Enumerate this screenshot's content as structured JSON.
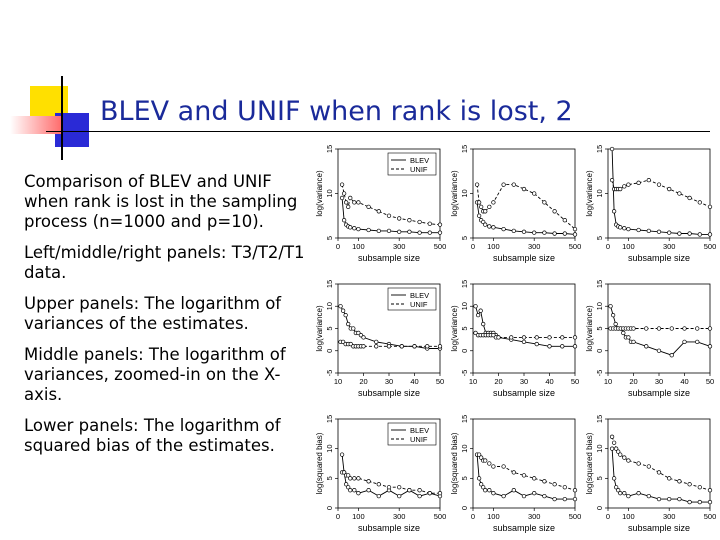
{
  "slide": {
    "title": "BLEV and UNIF when rank is lost, 2",
    "paragraphs": [
      "Comparison of BLEV and UNIF when rank is lost in the sampling process (n=1000 and p=10).",
      "Left/middle/right panels: T3/T2/T1 data.",
      "Upper panels: The logarithm of variances of the estimates.",
      "Middle panels: The logarithm of variances, zoomed-in on the X-axis.",
      "Lower panels: The logarithm of squared bias of the estimates."
    ],
    "colors": {
      "title": "#1a2a9a",
      "deco_yellow": "#ffe000",
      "deco_blue": "#2a2ad6",
      "deco_red": "#ff6a6a"
    }
  },
  "chart_data": [
    {
      "type": "line",
      "row": "upper",
      "col": "left",
      "xlabel": "subsample size",
      "ylabel": "log(variance)",
      "xlim": [
        0,
        500
      ],
      "ylim": [
        5,
        15
      ],
      "xticks": [
        0,
        100,
        300,
        500
      ],
      "yticks": [
        5,
        10,
        15
      ],
      "legend": [
        "BLEV",
        "UNIF"
      ],
      "series": [
        {
          "name": "BLEV",
          "x": [
            20,
            30,
            40,
            50,
            60,
            80,
            100,
            150,
            200,
            250,
            300,
            350,
            400,
            450,
            500
          ],
          "y": [
            9.5,
            7,
            6.5,
            6.3,
            6.2,
            6.1,
            6,
            5.9,
            5.8,
            5.8,
            5.7,
            5.7,
            5.6,
            5.6,
            5.6
          ]
        },
        {
          "name": "UNIF",
          "x": [
            20,
            30,
            40,
            50,
            60,
            80,
            100,
            150,
            200,
            250,
            300,
            350,
            400,
            450,
            500
          ],
          "y": [
            11,
            10,
            9,
            8.5,
            9.5,
            9,
            9,
            8.5,
            8,
            7.5,
            7.2,
            7,
            6.8,
            6.6,
            6.5
          ]
        }
      ]
    },
    {
      "type": "line",
      "row": "upper",
      "col": "middle",
      "xlabel": "subsample size",
      "ylabel": "log(variance)",
      "xlim": [
        0,
        500
      ],
      "ylim": [
        5,
        15
      ],
      "xticks": [
        0,
        100,
        300,
        500
      ],
      "yticks": [
        5,
        10,
        15
      ],
      "series": [
        {
          "name": "BLEV",
          "x": [
            20,
            30,
            40,
            50,
            60,
            80,
            100,
            150,
            200,
            250,
            300,
            350,
            400,
            450,
            500
          ],
          "y": [
            9,
            7.5,
            7,
            6.8,
            6.5,
            6.3,
            6.2,
            6,
            5.8,
            5.7,
            5.6,
            5.6,
            5.5,
            5.5,
            5.4
          ]
        },
        {
          "name": "UNIF",
          "x": [
            20,
            30,
            40,
            50,
            60,
            80,
            100,
            150,
            200,
            250,
            300,
            350,
            400,
            450,
            500
          ],
          "y": [
            11,
            9,
            8.5,
            8,
            8,
            8.5,
            9,
            11,
            11,
            10.5,
            10,
            9,
            8,
            7,
            6
          ]
        }
      ]
    },
    {
      "type": "line",
      "row": "upper",
      "col": "right",
      "xlabel": "subsample size",
      "ylabel": "log(variance)",
      "xlim": [
        0,
        500
      ],
      "ylim": [
        5,
        15
      ],
      "xticks": [
        0,
        100,
        300,
        500
      ],
      "yticks": [
        5,
        10,
        15
      ],
      "series": [
        {
          "name": "BLEV",
          "x": [
            20,
            30,
            40,
            50,
            60,
            80,
            100,
            150,
            200,
            250,
            300,
            350,
            400,
            450,
            500
          ],
          "y": [
            15,
            8,
            6.5,
            6.3,
            6.2,
            6.1,
            6,
            5.9,
            5.8,
            5.7,
            5.6,
            5.5,
            5.5,
            5.4,
            5.4
          ]
        },
        {
          "name": "UNIF",
          "x": [
            20,
            30,
            40,
            50,
            60,
            80,
            100,
            150,
            200,
            250,
            300,
            350,
            400,
            450,
            500
          ],
          "y": [
            11.5,
            10.5,
            10.5,
            10.5,
            10.5,
            10.8,
            11,
            11.2,
            11.5,
            11,
            10.5,
            10,
            9.5,
            9,
            8.5
          ]
        }
      ]
    },
    {
      "type": "line",
      "row": "middle",
      "col": "left",
      "xlabel": "subsample size",
      "ylabel": "log(variance)",
      "xlim": [
        10,
        50
      ],
      "ylim": [
        -5,
        15
      ],
      "xticks": [
        10,
        20,
        30,
        40,
        50
      ],
      "yticks": [
        -5,
        0,
        5,
        10,
        15
      ],
      "legend": [
        "BLEV",
        "UNIF"
      ],
      "series": [
        {
          "name": "BLEV",
          "x": [
            11,
            12,
            13,
            14,
            15,
            16,
            17,
            18,
            19,
            20,
            25,
            30,
            35,
            40,
            45,
            50
          ],
          "y": [
            10,
            9,
            8,
            6,
            5,
            5,
            4,
            4,
            3.5,
            3,
            2,
            1.5,
            1,
            1,
            0.5,
            0.5
          ]
        },
        {
          "name": "UNIF",
          "x": [
            11,
            12,
            13,
            14,
            15,
            16,
            17,
            18,
            19,
            20,
            25,
            30,
            35,
            40,
            45,
            50
          ],
          "y": [
            2,
            2,
            1.5,
            1.5,
            1.5,
            1,
            1,
            1,
            1,
            1,
            1,
            1,
            1,
            1,
            1,
            1
          ]
        }
      ]
    },
    {
      "type": "line",
      "row": "middle",
      "col": "middle",
      "xlabel": "subsample size",
      "ylabel": "log(variance)",
      "xlim": [
        10,
        50
      ],
      "ylim": [
        -5,
        15
      ],
      "xticks": [
        10,
        20,
        30,
        40,
        50
      ],
      "yticks": [
        -5,
        0,
        5,
        10,
        15
      ],
      "series": [
        {
          "name": "BLEV",
          "x": [
            11,
            12,
            13,
            14,
            15,
            16,
            17,
            18,
            19,
            20,
            25,
            30,
            35,
            40,
            45,
            50
          ],
          "y": [
            10,
            8,
            9,
            6,
            4,
            4,
            4,
            4,
            3.5,
            3,
            2.5,
            2,
            1.5,
            1,
            1,
            1
          ]
        },
        {
          "name": "UNIF",
          "x": [
            11,
            12,
            13,
            14,
            15,
            16,
            17,
            18,
            19,
            20,
            25,
            30,
            35,
            40,
            45,
            50
          ],
          "y": [
            4,
            3.5,
            3.5,
            3.5,
            3.5,
            3.5,
            3.5,
            3.5,
            3,
            3,
            3,
            3,
            3,
            3,
            3,
            3
          ]
        }
      ]
    },
    {
      "type": "line",
      "row": "middle",
      "col": "right",
      "xlabel": "subsample size",
      "ylabel": "log(variance)",
      "xlim": [
        10,
        50
      ],
      "ylim": [
        -5,
        15
      ],
      "xticks": [
        10,
        20,
        30,
        40,
        50
      ],
      "yticks": [
        -5,
        0,
        5,
        10,
        15
      ],
      "series": [
        {
          "name": "BLEV",
          "x": [
            11,
            12,
            13,
            14,
            15,
            16,
            17,
            18,
            19,
            20,
            25,
            30,
            35,
            40,
            45,
            50
          ],
          "y": [
            10,
            8,
            6,
            5,
            5,
            4,
            3,
            3,
            2,
            2,
            1,
            0,
            -1,
            2,
            2,
            1
          ]
        },
        {
          "name": "UNIF",
          "x": [
            11,
            12,
            13,
            14,
            15,
            16,
            17,
            18,
            19,
            20,
            25,
            30,
            35,
            40,
            45,
            50
          ],
          "y": [
            5,
            5,
            5,
            5,
            5,
            5,
            5,
            5,
            5,
            5,
            5,
            5,
            5,
            5,
            5,
            5
          ]
        }
      ]
    },
    {
      "type": "line",
      "row": "lower",
      "col": "left",
      "xlabel": "subsample size",
      "ylabel": "log(squared bias)",
      "xlim": [
        0,
        500
      ],
      "ylim": [
        0,
        15
      ],
      "xticks": [
        0,
        100,
        300,
        500
      ],
      "yticks": [
        0,
        5,
        10,
        15
      ],
      "legend": [
        "BLEV",
        "UNIF"
      ],
      "series": [
        {
          "name": "BLEV",
          "x": [
            20,
            30,
            40,
            50,
            60,
            80,
            100,
            150,
            200,
            250,
            300,
            350,
            400,
            450,
            500
          ],
          "y": [
            9,
            6,
            4,
            3.5,
            3,
            3,
            2.5,
            3,
            2,
            3,
            2,
            3,
            2,
            2.5,
            2
          ]
        },
        {
          "name": "UNIF",
          "x": [
            20,
            30,
            40,
            50,
            60,
            80,
            100,
            150,
            200,
            250,
            300,
            350,
            400,
            450,
            500
          ],
          "y": [
            6,
            6,
            5.5,
            5.5,
            5,
            5,
            5,
            4.5,
            4,
            3.5,
            3.5,
            3,
            3,
            2.5,
            2.5
          ]
        }
      ]
    },
    {
      "type": "line",
      "row": "lower",
      "col": "middle",
      "xlabel": "subsample size",
      "ylabel": "log(squared bias)",
      "xlim": [
        0,
        500
      ],
      "ylim": [
        0,
        15
      ],
      "xticks": [
        0,
        100,
        300,
        500
      ],
      "yticks": [
        0,
        5,
        10,
        15
      ],
      "series": [
        {
          "name": "BLEV",
          "x": [
            20,
            30,
            40,
            50,
            60,
            80,
            100,
            150,
            200,
            250,
            300,
            350,
            400,
            450,
            500
          ],
          "y": [
            9,
            5,
            4,
            3.5,
            3,
            3,
            2.5,
            2,
            3,
            2,
            2.5,
            2,
            1.5,
            1.5,
            1.5
          ]
        },
        {
          "name": "UNIF",
          "x": [
            20,
            30,
            40,
            50,
            60,
            80,
            100,
            150,
            200,
            250,
            300,
            350,
            400,
            450,
            500
          ],
          "y": [
            9,
            9,
            8.5,
            8,
            8,
            7.5,
            7,
            7,
            6,
            5.5,
            5,
            4.5,
            4,
            3.5,
            3
          ]
        }
      ]
    },
    {
      "type": "line",
      "row": "lower",
      "col": "right",
      "xlabel": "subsample size",
      "ylabel": "log(squared bias)",
      "xlim": [
        0,
        500
      ],
      "ylim": [
        0,
        15
      ],
      "xticks": [
        0,
        100,
        300,
        500
      ],
      "yticks": [
        0,
        5,
        10,
        15
      ],
      "series": [
        {
          "name": "BLEV",
          "x": [
            20,
            30,
            40,
            50,
            60,
            80,
            100,
            150,
            200,
            250,
            300,
            350,
            400,
            450,
            500
          ],
          "y": [
            10,
            5,
            3.5,
            3,
            2.5,
            2.5,
            2,
            2.5,
            2,
            1.5,
            1.5,
            1.5,
            1,
            1,
            1
          ]
        },
        {
          "name": "UNIF",
          "x": [
            20,
            30,
            40,
            50,
            60,
            80,
            100,
            150,
            200,
            250,
            300,
            350,
            400,
            450,
            500
          ],
          "y": [
            12,
            11,
            10,
            9.5,
            9,
            8.5,
            8,
            7.5,
            7,
            6,
            5,
            4.5,
            4,
            3.5,
            3
          ]
        }
      ]
    }
  ]
}
